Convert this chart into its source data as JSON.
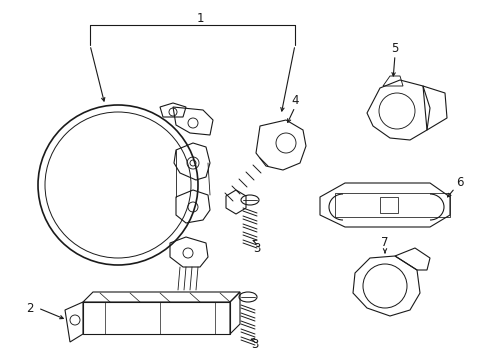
{
  "background_color": "#ffffff",
  "line_color": "#1a1a1a",
  "line_width": 0.8,
  "figure_width": 4.89,
  "figure_height": 3.6,
  "dpi": 100,
  "label_fontsize": 8.5
}
